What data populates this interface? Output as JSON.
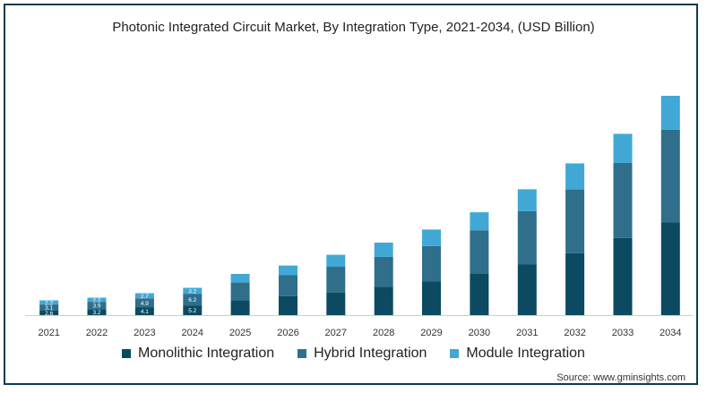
{
  "chart_data": {
    "type": "bar",
    "stacked": true,
    "title": "Photonic Integrated Circuit Market, By Integration Type, 2021-2034, (USD Billion)",
    "categories": [
      "2021",
      "2022",
      "2023",
      "2024",
      "2025",
      "2026",
      "2027",
      "2028",
      "2029",
      "2030",
      "2031",
      "2032",
      "2033",
      "2034"
    ],
    "series": [
      {
        "name": "Monolithic Integration",
        "color": "#0b4a60",
        "values": [
          2.6,
          3.2,
          4.1,
          5.2,
          8.0,
          10.2,
          12.3,
          15.1,
          17.9,
          22.2,
          27.2,
          33.0,
          41.2,
          49.6
        ]
      },
      {
        "name": "Hybrid Integration",
        "color": "#2f6f8c",
        "values": [
          3.1,
          3.9,
          4.9,
          6.2,
          9.4,
          11.1,
          13.5,
          16.0,
          19.0,
          23.1,
          28.3,
          34.1,
          40.1,
          49.4
        ]
      },
      {
        "name": "Module Integration",
        "color": "#41a8d6",
        "values": [
          2.2,
          2.2,
          2.7,
          3.2,
          4.6,
          5.2,
          6.4,
          7.6,
          8.8,
          9.6,
          11.7,
          13.9,
          15.5,
          18.1
        ]
      }
    ],
    "data_labels": {
      "2021": [
        "2.6",
        "3.1",
        "2.2"
      ],
      "2022": [
        "3.2",
        "3.9",
        "2.2"
      ],
      "2023": [
        "4.1",
        "4.9",
        "2.7"
      ],
      "2024": [
        "5.2",
        "6.2",
        "3.2"
      ]
    },
    "ylim": [
      0,
      130
    ],
    "xlabel": "",
    "ylabel": "",
    "grid": false,
    "legend_position": "bottom"
  },
  "legend": {
    "items": [
      {
        "label": "Monolithic Integration"
      },
      {
        "label": "Hybrid Integration"
      },
      {
        "label": "Module Integration"
      }
    ]
  },
  "source": "Source: www.gminsights.com"
}
